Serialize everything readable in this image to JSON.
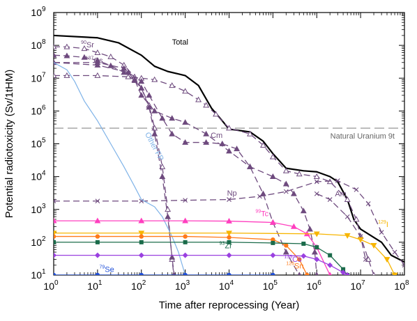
{
  "chart_data": {
    "type": "line",
    "title": "",
    "xlabel": "Time after reprocessing (Year)",
    "ylabel": "Potential radiotoxicity (Sv/1tHM)",
    "x_scale": "log",
    "y_scale": "log",
    "xlim": [
      1,
      100000000
    ],
    "ylim": [
      10,
      1000000000
    ],
    "x_ticks": [
      {
        "value": 1,
        "base": "10",
        "exp": "0"
      },
      {
        "value": 10,
        "base": "10",
        "exp": "1"
      },
      {
        "value": 100,
        "base": "10",
        "exp": "2"
      },
      {
        "value": 1000,
        "base": "10",
        "exp": "3"
      },
      {
        "value": 10000,
        "base": "10",
        "exp": "4"
      },
      {
        "value": 100000,
        "base": "10",
        "exp": "5"
      },
      {
        "value": 1000000,
        "base": "10",
        "exp": "6"
      },
      {
        "value": 10000000,
        "base": "10",
        "exp": "7"
      },
      {
        "value": 100000000,
        "base": "10",
        "exp": "8"
      }
    ],
    "y_ticks": [
      {
        "value": 10,
        "base": "10",
        "exp": "1"
      },
      {
        "value": 100,
        "base": "10",
        "exp": "2"
      },
      {
        "value": 1000,
        "base": "10",
        "exp": "3"
      },
      {
        "value": 10000,
        "base": "10",
        "exp": "4"
      },
      {
        "value": 100000,
        "base": "10",
        "exp": "5"
      },
      {
        "value": 1000000,
        "base": "10",
        "exp": "6"
      },
      {
        "value": 10000000,
        "base": "10",
        "exp": "7"
      },
      {
        "value": 100000000,
        "base": "10",
        "exp": "8"
      },
      {
        "value": 1000000000,
        "base": "10",
        "exp": "9"
      }
    ],
    "reference_line": {
      "label": "Natural Uranium 9t",
      "value": 300000,
      "color": "#8a8a8a",
      "dash": "long"
    },
    "series": [
      {
        "key": "total",
        "color": "#000000",
        "dash": "solid",
        "marker": "none",
        "width": 2.2,
        "points": [
          [
            1,
            200000000.0
          ],
          [
            10,
            170000000.0
          ],
          [
            30,
            120000000.0
          ],
          [
            100,
            50000000.0
          ],
          [
            200,
            23000000.0
          ],
          [
            400,
            16000000.0
          ],
          [
            1000,
            12000000.0
          ],
          [
            2000,
            6000000.0
          ],
          [
            4000,
            1200000.0
          ],
          [
            7000,
            500000.0
          ],
          [
            10000,
            280000.0
          ],
          [
            30000,
            230000.0
          ],
          [
            60000,
            120000.0
          ],
          [
            100000,
            50000.0
          ],
          [
            200000,
            18000.0
          ],
          [
            500000,
            15000.0
          ],
          [
            1000000,
            14000.0
          ],
          [
            2000000,
            10000.0
          ],
          [
            3000000,
            7000.0
          ],
          [
            5000000,
            2000.0
          ],
          [
            7000000,
            500.0
          ],
          [
            10000000,
            250.0
          ],
          [
            30000000,
            100.0
          ],
          [
            50000000,
            40.0
          ],
          [
            100000000,
            25.0
          ]
        ]
      },
      {
        "key": "sr90",
        "color": "#6e4a7e",
        "dash": "dashed",
        "marker": "triangle-open",
        "points": [
          [
            1,
            90000000.0
          ],
          [
            2,
            90000000.0
          ],
          [
            5,
            80000000.0
          ],
          [
            10,
            60000000.0
          ],
          [
            20,
            45000000.0
          ],
          [
            40,
            25000000.0
          ],
          [
            70,
            11000000.0
          ],
          [
            100,
            5000000.0
          ],
          [
            150,
            1500000.0
          ],
          [
            200,
            300000.0
          ],
          [
            300,
            20000.0
          ],
          [
            400,
            1000.0
          ],
          [
            500,
            30.0
          ],
          [
            550,
            10.0
          ]
        ]
      },
      {
        "key": "cs137",
        "color": "#6e4a7e",
        "dash": "dashed",
        "marker": "triangle-filled",
        "points": [
          [
            1,
            50000000.0
          ],
          [
            2,
            48000000.0
          ],
          [
            5,
            43000000.0
          ],
          [
            10,
            35000000.0
          ],
          [
            20,
            24000000.0
          ],
          [
            40,
            15000000.0
          ],
          [
            70,
            8500000.0
          ],
          [
            100,
            5000000.0
          ],
          [
            150,
            1300000.0
          ],
          [
            200,
            200000.0
          ],
          [
            300,
            10000.0
          ],
          [
            400,
            600.0
          ],
          [
            500,
            35.0
          ],
          [
            560,
            10.0
          ]
        ]
      },
      {
        "key": "pu",
        "color": "#6e4a7e",
        "dash": "dashed",
        "marker": "triangle-open",
        "points": [
          [
            1,
            12000000.0
          ],
          [
            2,
            12000000.0
          ],
          [
            10,
            12000000.0
          ],
          [
            50,
            11000000.0
          ],
          [
            100,
            10000000.0
          ],
          [
            200,
            9000000.0
          ],
          [
            500,
            6000000.0
          ],
          [
            1000,
            4000000.0
          ],
          [
            2000,
            2200000.0
          ],
          [
            3000,
            1500000.0
          ],
          [
            5000,
            800000.0
          ],
          [
            10000,
            300000.0
          ],
          [
            30000,
            200000.0
          ],
          [
            60000,
            90000.0
          ],
          [
            100000,
            40000.0
          ],
          [
            200000,
            15000.0
          ],
          [
            400000,
            12000.0
          ],
          [
            1000000,
            10000.0
          ],
          [
            2000000,
            7000.0
          ],
          [
            5000000,
            2000.0
          ],
          [
            8000000,
            500.0
          ],
          [
            10000000,
            150.0
          ],
          [
            15000000,
            30.0
          ],
          [
            20000000,
            10.0
          ]
        ]
      },
      {
        "key": "cm",
        "color": "#6e4a7e",
        "dash": "dashed",
        "marker": "triangle-filled",
        "points": [
          [
            1,
            30000000.0
          ],
          [
            10,
            25000000.0
          ],
          [
            50,
            15000000.0
          ],
          [
            100,
            8000000.0
          ],
          [
            150,
            3000000.0
          ],
          [
            300,
            600000.0
          ],
          [
            500,
            200000.0
          ],
          [
            1000,
            110000.0
          ],
          [
            3000,
            110000.0
          ],
          [
            7000,
            100000.0
          ],
          [
            15000,
            70000.0
          ],
          [
            30000,
            20000.0
          ],
          [
            60000,
            3000.0
          ],
          [
            100000,
            400.0
          ],
          [
            200000,
            50.0
          ],
          [
            400000,
            10.0
          ]
        ]
      },
      {
        "key": "am",
        "color": "#6e4a7e",
        "dash": "dashed",
        "marker": "triangle-filled",
        "points": [
          [
            1,
            30000000.0
          ],
          [
            10,
            30000000.0
          ],
          [
            40,
            20000000.0
          ],
          [
            70,
            9000000.0
          ],
          [
            100,
            3000000.0
          ],
          [
            200,
            1000000.0
          ],
          [
            500,
            600000.0
          ],
          [
            1000,
            450000.0
          ],
          [
            3000,
            200000.0
          ],
          [
            10000,
            60000.0
          ],
          [
            30000,
            20000.0
          ],
          [
            100000,
            10000.0
          ],
          [
            200000,
            6000.0
          ],
          [
            300000,
            3000.0
          ],
          [
            500000,
            900.0
          ],
          [
            700000,
            250.0
          ],
          [
            900000,
            50.0
          ],
          [
            1000000,
            10.0
          ]
        ]
      },
      {
        "key": "np",
        "color": "#6e4a7e",
        "dash": "dashed",
        "marker": "x",
        "points": [
          [
            1,
            1800.0
          ],
          [
            10,
            1800.0
          ],
          [
            100,
            1800.0
          ],
          [
            1000,
            1900.0
          ],
          [
            10000,
            2000.0
          ],
          [
            50000,
            2500.0
          ],
          [
            200000,
            3500.0
          ],
          [
            1000000,
            7000.0
          ],
          [
            3000000,
            7500.0
          ],
          [
            8000000,
            4000.0
          ],
          [
            15000000,
            1500.0
          ],
          [
            30000000,
            200.0
          ],
          [
            60000000,
            50.0
          ],
          [
            100000000,
            20.0
          ]
        ]
      },
      {
        "key": "am2",
        "color": "#6e4a7e",
        "dash": "dashed",
        "marker": "x",
        "points": [
          [
            1000000,
            3000.0
          ],
          [
            2000000,
            2000.0
          ],
          [
            5000000,
            600.0
          ],
          [
            10000000,
            150.0
          ],
          [
            13000000,
            30.0
          ]
        ]
      },
      {
        "key": "other_fp",
        "color": "#7fb3e8",
        "dash": "solid",
        "marker": "none",
        "width": 1.2,
        "points": [
          [
            1,
            30000000.0
          ],
          [
            2,
            18000000.0
          ],
          [
            3,
            8000000.0
          ],
          [
            5,
            2000000.0
          ],
          [
            10,
            500000.0
          ],
          [
            20,
            100000.0
          ],
          [
            40,
            20000.0
          ],
          [
            70,
            5000.0
          ],
          [
            100,
            2000.0
          ],
          [
            200,
            1200.0
          ],
          [
            300,
            600.0
          ],
          [
            500,
            150.0
          ],
          [
            700,
            50.0
          ],
          [
            1000,
            10.0
          ]
        ]
      },
      {
        "key": "tc99",
        "color": "#ff3fbf",
        "dash": "solid",
        "marker": "triangle-filled",
        "points": [
          [
            1,
            450.0
          ],
          [
            10,
            450.0
          ],
          [
            100,
            450.0
          ],
          [
            1000,
            450.0
          ],
          [
            10000,
            440.0
          ],
          [
            100000,
            400.0
          ],
          [
            300000,
            300.0
          ],
          [
            600000,
            180.0
          ],
          [
            1000000,
            70.0
          ],
          [
            2000000,
            10.0
          ]
        ]
      },
      {
        "key": "i129",
        "color": "#f7b500",
        "dash": "solid",
        "marker": "triangle-down",
        "points": [
          [
            1,
            190.0
          ],
          [
            100,
            190.0
          ],
          [
            10000,
            190.0
          ],
          [
            1000000,
            180.0
          ],
          [
            5000000,
            160.0
          ],
          [
            10000000,
            120.0
          ],
          [
            20000000,
            80.0
          ],
          [
            40000000,
            30.0
          ],
          [
            60000000,
            10.0
          ]
        ]
      },
      {
        "key": "sn126",
        "color": "#ff7a1a",
        "dash": "solid",
        "marker": "circle",
        "points": [
          [
            1,
            150.0
          ],
          [
            10,
            150.0
          ],
          [
            100,
            150.0
          ],
          [
            1000,
            150.0
          ],
          [
            10000,
            140.0
          ],
          [
            100000,
            120.0
          ],
          [
            200000,
            80.0
          ],
          [
            400000,
            30.0
          ],
          [
            600000,
            10.0
          ]
        ]
      },
      {
        "key": "zr93",
        "color": "#1a6b4a",
        "dash": "solid",
        "marker": "square",
        "points": [
          [
            1,
            100.0
          ],
          [
            10,
            100.0
          ],
          [
            100,
            100.0
          ],
          [
            1000,
            100.0
          ],
          [
            10000,
            100.0
          ],
          [
            100000,
            95.0
          ],
          [
            500000,
            90.0
          ],
          [
            1000000,
            70.0
          ],
          [
            2000000,
            40.0
          ],
          [
            4000000,
            15.0
          ],
          [
            5000000,
            10.0
          ]
        ]
      },
      {
        "key": "cs135",
        "color": "#9a40e0",
        "dash": "solid",
        "marker": "diamond",
        "points": [
          [
            1,
            40.0
          ],
          [
            10,
            40.0
          ],
          [
            100,
            40.0
          ],
          [
            1000,
            40.0
          ],
          [
            10000,
            40.0
          ],
          [
            100000,
            40.0
          ],
          [
            500000,
            38.0
          ],
          [
            1000000,
            30.0
          ],
          [
            2000000,
            20.0
          ],
          [
            4000000,
            12.0
          ],
          [
            5000000,
            10.0
          ]
        ]
      },
      {
        "key": "se79",
        "color": "#1f4fd8",
        "dash": "solid",
        "marker": "circle",
        "points": [
          [
            1,
            10.0
          ],
          [
            10,
            10.0
          ],
          [
            100,
            10.0
          ],
          [
            1000,
            10.0
          ],
          [
            10000,
            10.0
          ],
          [
            100000,
            10.0
          ]
        ]
      }
    ],
    "labels": [
      {
        "key": "label-total",
        "text": "Total",
        "sup": "",
        "color": "#000000",
        "x": 500,
        "y": 105000000.0
      },
      {
        "key": "label-sr90",
        "text": "Sr",
        "sup": "90",
        "color": "#6e4a7e",
        "x": 4.2,
        "y": 86000000.0
      },
      {
        "key": "label-cs137",
        "text": "Cs",
        "sup": "137",
        "color": "#6e4a7e",
        "x": 5.3,
        "y": 29000000.0
      },
      {
        "key": "label-cm",
        "text": "Cm",
        "sup": "",
        "color": "#6e4a7e",
        "x": 3800,
        "y": 150000.0
      },
      {
        "key": "label-am",
        "text": "Am",
        "sup": "",
        "color": "#6e4a7e",
        "x": 2600000,
        "y": 2500.0
      },
      {
        "key": "label-np",
        "text": "Np",
        "sup": "",
        "color": "#6e4a7e",
        "x": 9000,
        "y": 2600.0
      },
      {
        "key": "label-other-fp",
        "text": "Other FP",
        "sup": "",
        "color": "#7fb3e8",
        "x": 120,
        "y": 200000.0
      },
      {
        "key": "label-tc99",
        "text": "Tc",
        "sup": "99",
        "color": "#ff3fbf",
        "x": 40000,
        "y": 620.0
      },
      {
        "key": "label-i129",
        "text": "I",
        "sup": "129",
        "color": "#f7b500",
        "x": 25000000,
        "y": 290.0
      },
      {
        "key": "label-zr93",
        "text": "Zr",
        "sup": "93",
        "color": "#1a6b4a",
        "x": 6000,
        "y": 66.0
      },
      {
        "key": "label-cs135",
        "text": "Cs",
        "sup": "135",
        "color": "#9a40e0",
        "x": 180000,
        "y": 25.0
      },
      {
        "key": "label-sn126",
        "text": "Sn",
        "sup": "126",
        "color": "#ff7a1a",
        "x": 200000,
        "y": 16.0
      },
      {
        "key": "label-se79",
        "text": "Se",
        "sup": "79",
        "color": "#1f4fd8",
        "x": 11,
        "y": 12.5
      }
    ]
  }
}
